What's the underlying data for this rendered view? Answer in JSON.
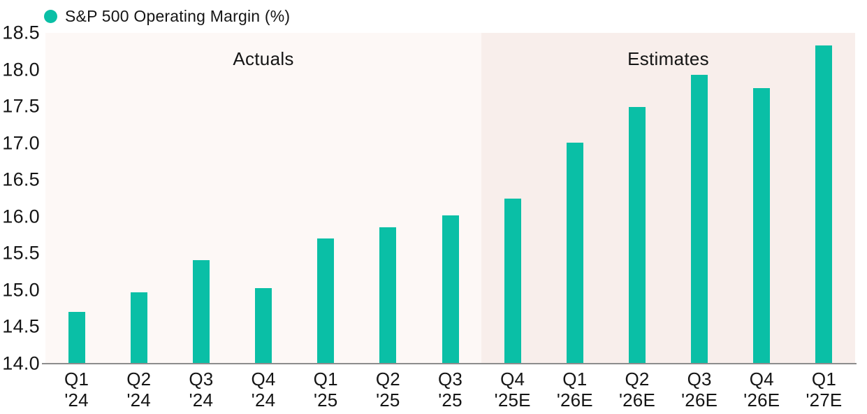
{
  "legend": {
    "label": "S&P 500 Operating Margin (%)",
    "dot_color": "#0abfa6"
  },
  "colors": {
    "bar": "#0abfa6",
    "actuals_bg": "#fdf8f6",
    "estimates_bg": "#f8eeeb",
    "axis_line": "#8d8d8d",
    "text": "#151515"
  },
  "chart_data": {
    "type": "bar",
    "title": "S&P 500 Operating Margin (%)",
    "categories": [
      "Q1 '24",
      "Q2 '24",
      "Q3 '24",
      "Q4 '24",
      "Q1 '25",
      "Q2 '25",
      "Q3 '25",
      "Q4 '25E",
      "Q1 '26E",
      "Q2 '26E",
      "Q3 '26E",
      "Q4 '26E",
      "Q1 '27E"
    ],
    "category_lines": [
      [
        "Q1",
        "'24"
      ],
      [
        "Q2",
        "'24"
      ],
      [
        "Q3",
        "'24"
      ],
      [
        "Q4",
        "'24"
      ],
      [
        "Q1",
        "'25"
      ],
      [
        "Q2",
        "'25"
      ],
      [
        "Q3",
        "'25"
      ],
      [
        "Q4",
        "'25E"
      ],
      [
        "Q1",
        "'26E"
      ],
      [
        "Q2",
        "'26E"
      ],
      [
        "Q3",
        "'26E"
      ],
      [
        "Q4",
        "'26E"
      ],
      [
        "Q1",
        "'27E"
      ]
    ],
    "values": [
      14.7,
      14.97,
      15.41,
      15.03,
      15.7,
      15.86,
      16.02,
      16.25,
      17.01,
      17.49,
      17.93,
      17.75,
      18.33
    ],
    "ylim": [
      14.0,
      18.5
    ],
    "y_ticks": [
      "18.5",
      "18.0",
      "17.5",
      "17.0",
      "16.5",
      "16.0",
      "15.5",
      "15.0",
      "14.5",
      "14.0"
    ],
    "xlabel": "",
    "ylabel": "",
    "grid": false,
    "legend_position": "top-left",
    "bar_color": "#0abfa6",
    "regions": [
      {
        "label": "Actuals",
        "start_index": 0,
        "end_index": 6,
        "bg": "#fdf8f6"
      },
      {
        "label": "Estimates",
        "start_index": 7,
        "end_index": 12,
        "bg": "#f8eeeb"
      }
    ]
  }
}
